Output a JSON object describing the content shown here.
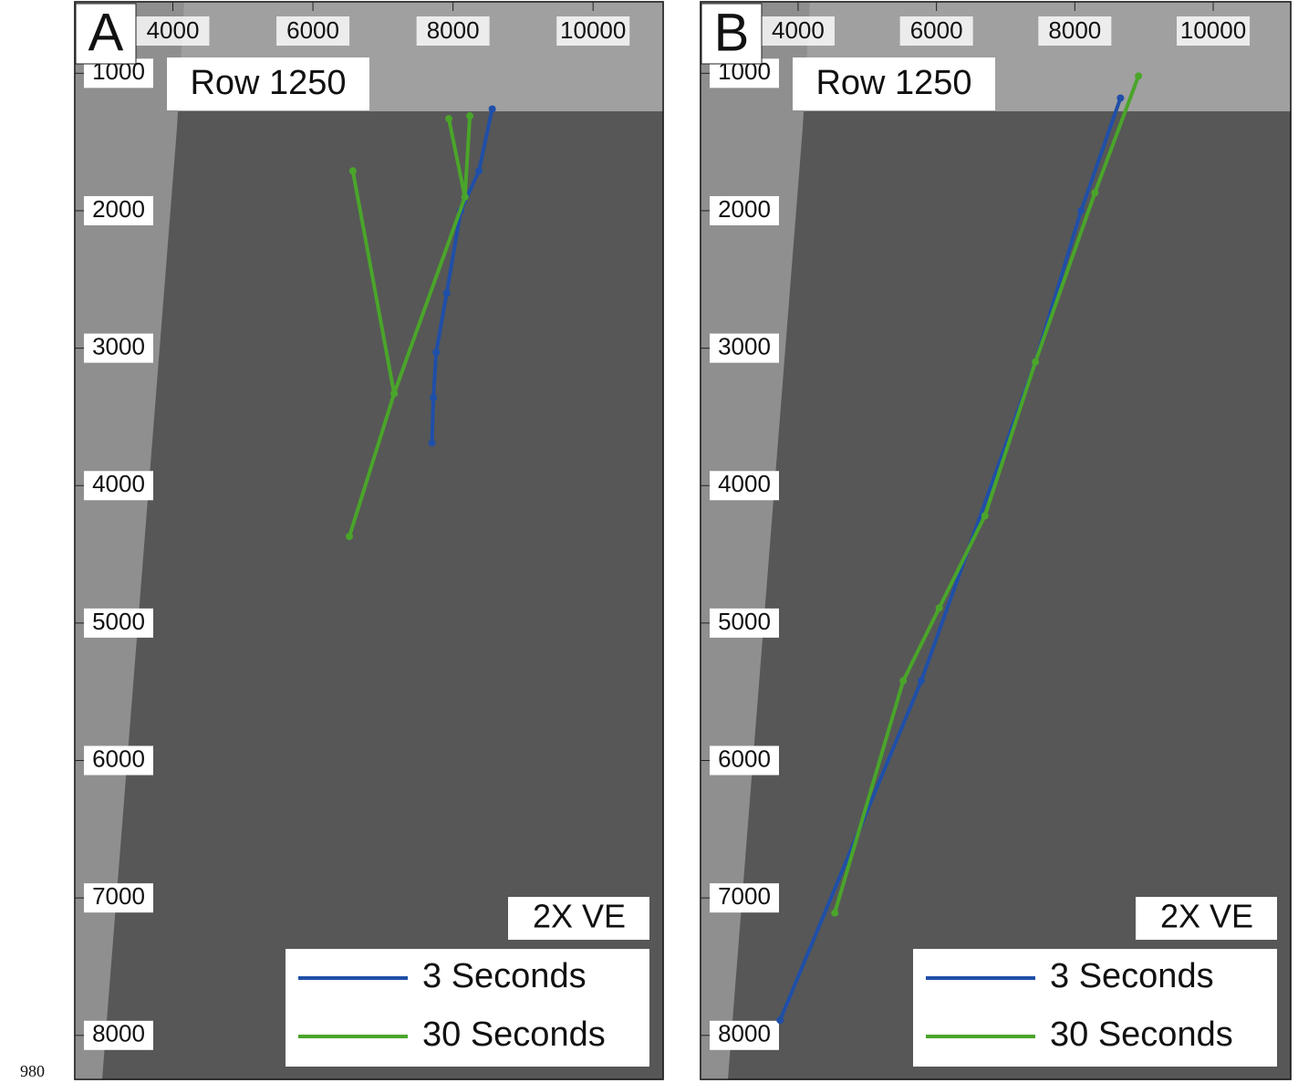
{
  "page_number": "980",
  "chart_data": [
    {
      "type": "line",
      "panel_label": "A",
      "title": "Row 1250",
      "annotation": "2X VE",
      "xlim": [
        2600,
        11000
      ],
      "ylim": [
        480,
        8320
      ],
      "y_inverted": true,
      "xticks": [
        4000,
        6000,
        8000,
        10000
      ],
      "yticks": [
        1000,
        2000,
        3000,
        4000,
        5000,
        6000,
        7000,
        8000
      ],
      "legend": "lower right",
      "series": [
        {
          "name": "3 Seconds",
          "color": "#1f4fa8",
          "x": [
            8560,
            8370,
            8110,
            7910,
            7760,
            7720,
            7700
          ],
          "values": [
            1260,
            1710,
            2000,
            2600,
            3030,
            3360,
            3690
          ]
        },
        {
          "name": "30 Seconds",
          "color": "#4aa52a",
          "x": [
            6570,
            7160,
            null,
            6520,
            7160,
            8170,
            7940,
            null,
            8170,
            8240
          ],
          "values": [
            1710,
            3330,
            null,
            4370,
            3330,
            1900,
            1330,
            null,
            1900,
            1310
          ]
        }
      ]
    },
    {
      "type": "line",
      "panel_label": "B",
      "title": "Row 1250",
      "annotation": "2X VE",
      "xlim": [
        2590,
        11120
      ],
      "ylim": [
        480,
        8320
      ],
      "y_inverted": true,
      "xticks": [
        4000,
        6000,
        8000,
        10000
      ],
      "yticks": [
        1000,
        2000,
        3000,
        4000,
        5000,
        6000,
        7000,
        8000
      ],
      "legend": "lower right",
      "series": [
        {
          "name": "3 Seconds",
          "color": "#1f4fa8",
          "x": [
            8660,
            8090,
            7430,
            5780,
            3740
          ],
          "values": [
            1180,
            2000,
            3100,
            5420,
            7890
          ]
        },
        {
          "name": "30 Seconds",
          "color": "#4aa52a",
          "x": [
            8920,
            8290,
            7430,
            6700,
            6040,
            5520,
            4530
          ],
          "values": [
            1020,
            1870,
            3100,
            4220,
            4890,
            5420,
            7110
          ]
        }
      ]
    }
  ]
}
